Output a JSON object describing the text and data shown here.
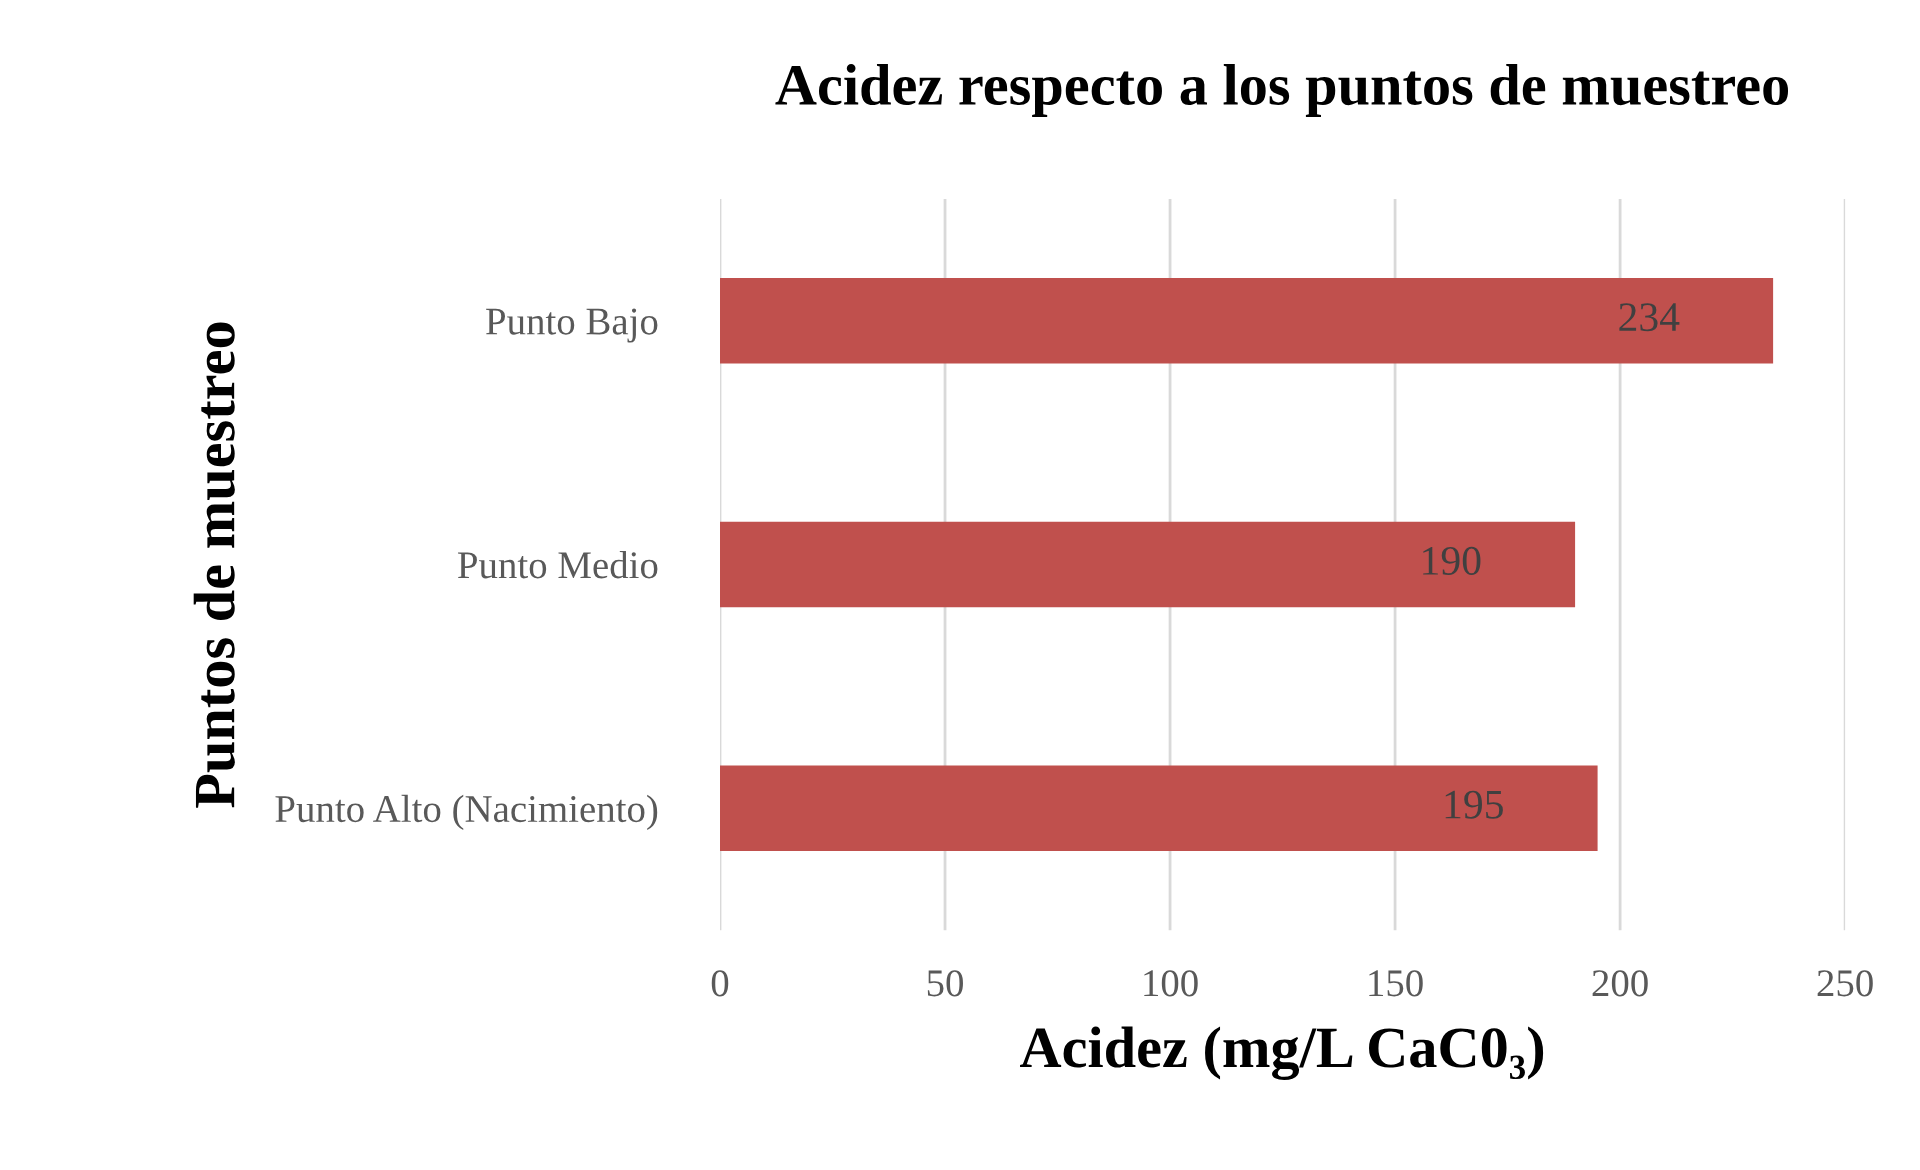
{
  "chart_data": {
    "type": "bar",
    "orientation": "horizontal",
    "title": "Acidez respecto a los puntos de muestreo",
    "xlabel": "Acidez (mg/L CaC0₃)",
    "ylabel": "Puntos de muestreo",
    "categories": [
      "Punto Bajo",
      "Punto Medio",
      "Punto Alto (Nacimiento)"
    ],
    "values": [
      234,
      190,
      195
    ],
    "color": "#c0504d",
    "data_labels": true,
    "xlim": [
      0,
      250
    ],
    "xticks": [
      0,
      50,
      100,
      150,
      200,
      250
    ],
    "grid": "x",
    "legend": false
  }
}
